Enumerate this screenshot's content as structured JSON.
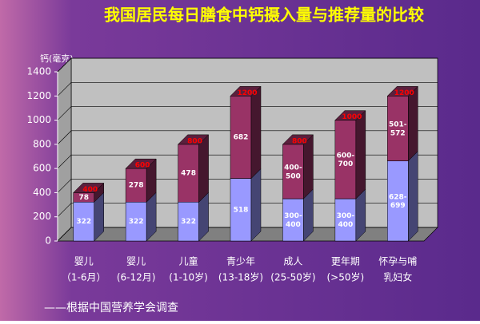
{
  "chart_data": {
    "type": "stacked_bar_3d",
    "title": "我国居民每日膳食中钙摄入量与推荐量的比较",
    "y_label": "钙(毫克)",
    "categories": [
      [
        "婴儿",
        "（1-6月）"
      ],
      [
        "婴儿",
        "(6-12月)"
      ],
      [
        "儿童",
        "(1-10岁)"
      ],
      [
        "青少年",
        "(13-18岁)"
      ],
      [
        "成人",
        "(25-50岁)"
      ],
      [
        "更年期",
        "(>50岁)"
      ],
      [
        "怀孕与哺",
        "乳妇女"
      ]
    ],
    "series": [
      {
        "color": "#9999ff",
        "values": [
          322,
          322,
          322,
          518,
          350,
          350,
          663.5
        ],
        "value_labels": [
          "322",
          "322",
          "322",
          "518",
          "300-400",
          "300-400",
          "628-699"
        ]
      },
      {
        "color": "#993366",
        "values": [
          78,
          278,
          478,
          682,
          450,
          650,
          536.5
        ],
        "value_labels": [
          "78",
          "278",
          "478",
          "682",
          "400-500",
          "600-700",
          "501-572"
        ]
      }
    ],
    "recommended": [
      400,
      600,
      800,
      1200,
      800,
      1000,
      1200
    ],
    "recommended_color": "#ff0000",
    "ylim": [
      0,
      1400
    ],
    "yticks": [
      0,
      200,
      400,
      600,
      800,
      1000,
      1200,
      1400
    ],
    "grid": true,
    "source": "——根据中国营养学会调查"
  }
}
